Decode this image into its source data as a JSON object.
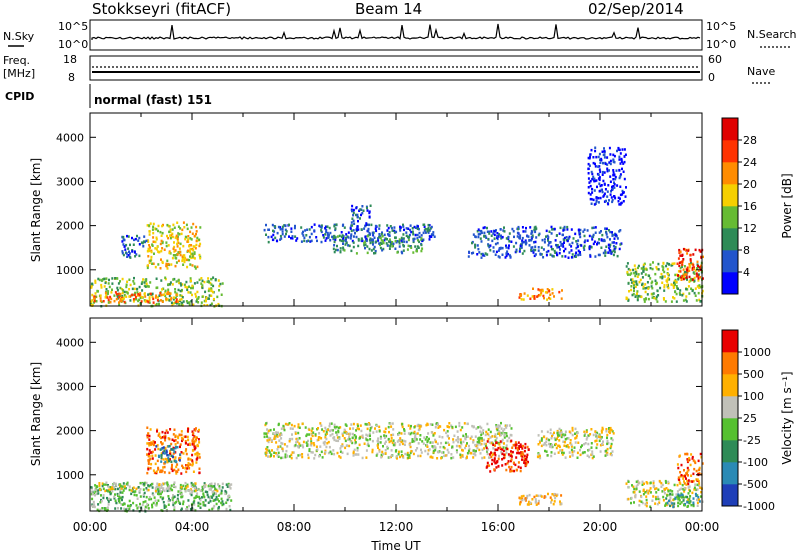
{
  "header": {
    "station": "Stokkseyri (fitACF)",
    "beam": "Beam 14",
    "date": "02/Sep/2014"
  },
  "top_panels": {
    "nsky_label": "N.Sky",
    "nsearch_label": "N.Search",
    "nsky_ticks": [
      "10^5",
      "10^0"
    ],
    "nsearch_ticks": [
      "10^5",
      "10^0"
    ],
    "freq_label_1": "Freq.",
    "freq_label_2": "[MHz]",
    "freq_ticks": [
      "18",
      "8"
    ],
    "nave_label": "Nave",
    "nave_ticks": [
      "60",
      "0"
    ],
    "cpid_label": "CPID",
    "cpid_value": "normal (fast) 151"
  },
  "chart_data": [
    {
      "type": "heatmap",
      "title": "Power",
      "ylabel": "Slant Range [km]",
      "xlabel": "",
      "x_range_hours": [
        0,
        24
      ],
      "ylim": [
        180,
        4550
      ],
      "y_ticks": [
        "1000",
        "2000",
        "3000",
        "4000"
      ],
      "x_tick_labels": [],
      "colorbar": {
        "label": "Power [dB]",
        "ticks": [
          "4",
          "8",
          "12",
          "16",
          "20",
          "24",
          "28"
        ],
        "colors": [
          "#0000ff",
          "#2255cc",
          "#2e8b57",
          "#66bb33",
          "#f5d000",
          "#ff8c00",
          "#ff3300",
          "#e00000"
        ]
      },
      "regions": [
        {
          "t0": 0.0,
          "t1": 5.2,
          "r0": 200,
          "r1": 850,
          "level": 3
        },
        {
          "t0": 0.0,
          "t1": 3.5,
          "r0": 280,
          "r1": 520,
          "level": 5
        },
        {
          "t0": 2.2,
          "t1": 4.3,
          "r0": 1050,
          "r1": 2100,
          "level": 4
        },
        {
          "t0": 1.2,
          "t1": 2.2,
          "r0": 1300,
          "r1": 1800,
          "level": 1
        },
        {
          "t0": 6.8,
          "t1": 13.5,
          "r0": 1650,
          "r1": 2050,
          "level": 1
        },
        {
          "t0": 9.5,
          "t1": 13.0,
          "r0": 1400,
          "r1": 1800,
          "level": 2
        },
        {
          "t0": 10.2,
          "t1": 11.0,
          "r0": 1900,
          "r1": 2500,
          "level": 1
        },
        {
          "t0": 14.8,
          "t1": 20.8,
          "r0": 1300,
          "r1": 2000,
          "level": 1
        },
        {
          "t0": 16.8,
          "t1": 18.5,
          "r0": 350,
          "r1": 600,
          "level": 5
        },
        {
          "t0": 21.0,
          "t1": 24.0,
          "r0": 300,
          "r1": 1200,
          "level": 3
        },
        {
          "t0": 23.0,
          "t1": 24.0,
          "r0": 800,
          "r1": 1500,
          "level": 6
        },
        {
          "t0": 19.5,
          "t1": 21.0,
          "r0": 2500,
          "r1": 3800,
          "level": 0
        }
      ]
    },
    {
      "type": "heatmap",
      "title": "Velocity",
      "ylabel": "Slant Range [km]",
      "xlabel": "Time UT",
      "x_range_hours": [
        0,
        24
      ],
      "ylim": [
        180,
        4550
      ],
      "y_ticks": [
        "1000",
        "2000",
        "3000",
        "4000"
      ],
      "x_tick_labels": [
        "00:00",
        "04:00",
        "08:00",
        "12:00",
        "16:00",
        "20:00",
        "00:00"
      ],
      "colorbar": {
        "label": "Velocity [m s⁻¹]",
        "ticks": [
          "1000",
          "500",
          "100",
          "25",
          "-25",
          "-100",
          "-500",
          "-1000"
        ],
        "colors": [
          "#1f3fb8",
          "#2a8ab5",
          "#2e8b57",
          "#55c030",
          "#c0c0b8",
          "#ffb000",
          "#ff7a00",
          "#e80000"
        ]
      },
      "regions": [
        {
          "t0": 0.0,
          "t1": 5.5,
          "r0": 200,
          "r1": 850,
          "level": 3
        },
        {
          "t0": 0.0,
          "t1": 5.0,
          "r0": 650,
          "r1": 850,
          "level": 4
        },
        {
          "t0": 2.2,
          "t1": 4.3,
          "r0": 1050,
          "r1": 2100,
          "level": 6
        },
        {
          "t0": 2.5,
          "t1": 3.5,
          "r0": 1300,
          "r1": 1700,
          "level": 1
        },
        {
          "t0": 6.8,
          "t1": 16.5,
          "r0": 1400,
          "r1": 2200,
          "level": 4
        },
        {
          "t0": 15.5,
          "t1": 17.2,
          "r0": 1100,
          "r1": 1800,
          "level": 7
        },
        {
          "t0": 16.8,
          "t1": 18.5,
          "r0": 350,
          "r1": 600,
          "level": 5
        },
        {
          "t0": 17.5,
          "t1": 20.5,
          "r0": 1400,
          "r1": 2100,
          "level": 4
        },
        {
          "t0": 21.0,
          "t1": 24.0,
          "r0": 300,
          "r1": 900,
          "level": 4
        },
        {
          "t0": 23.0,
          "t1": 24.0,
          "r0": 800,
          "r1": 1500,
          "level": 6
        },
        {
          "t0": 22.5,
          "t1": 24.0,
          "r0": 300,
          "r1": 600,
          "level": 2
        }
      ]
    }
  ]
}
